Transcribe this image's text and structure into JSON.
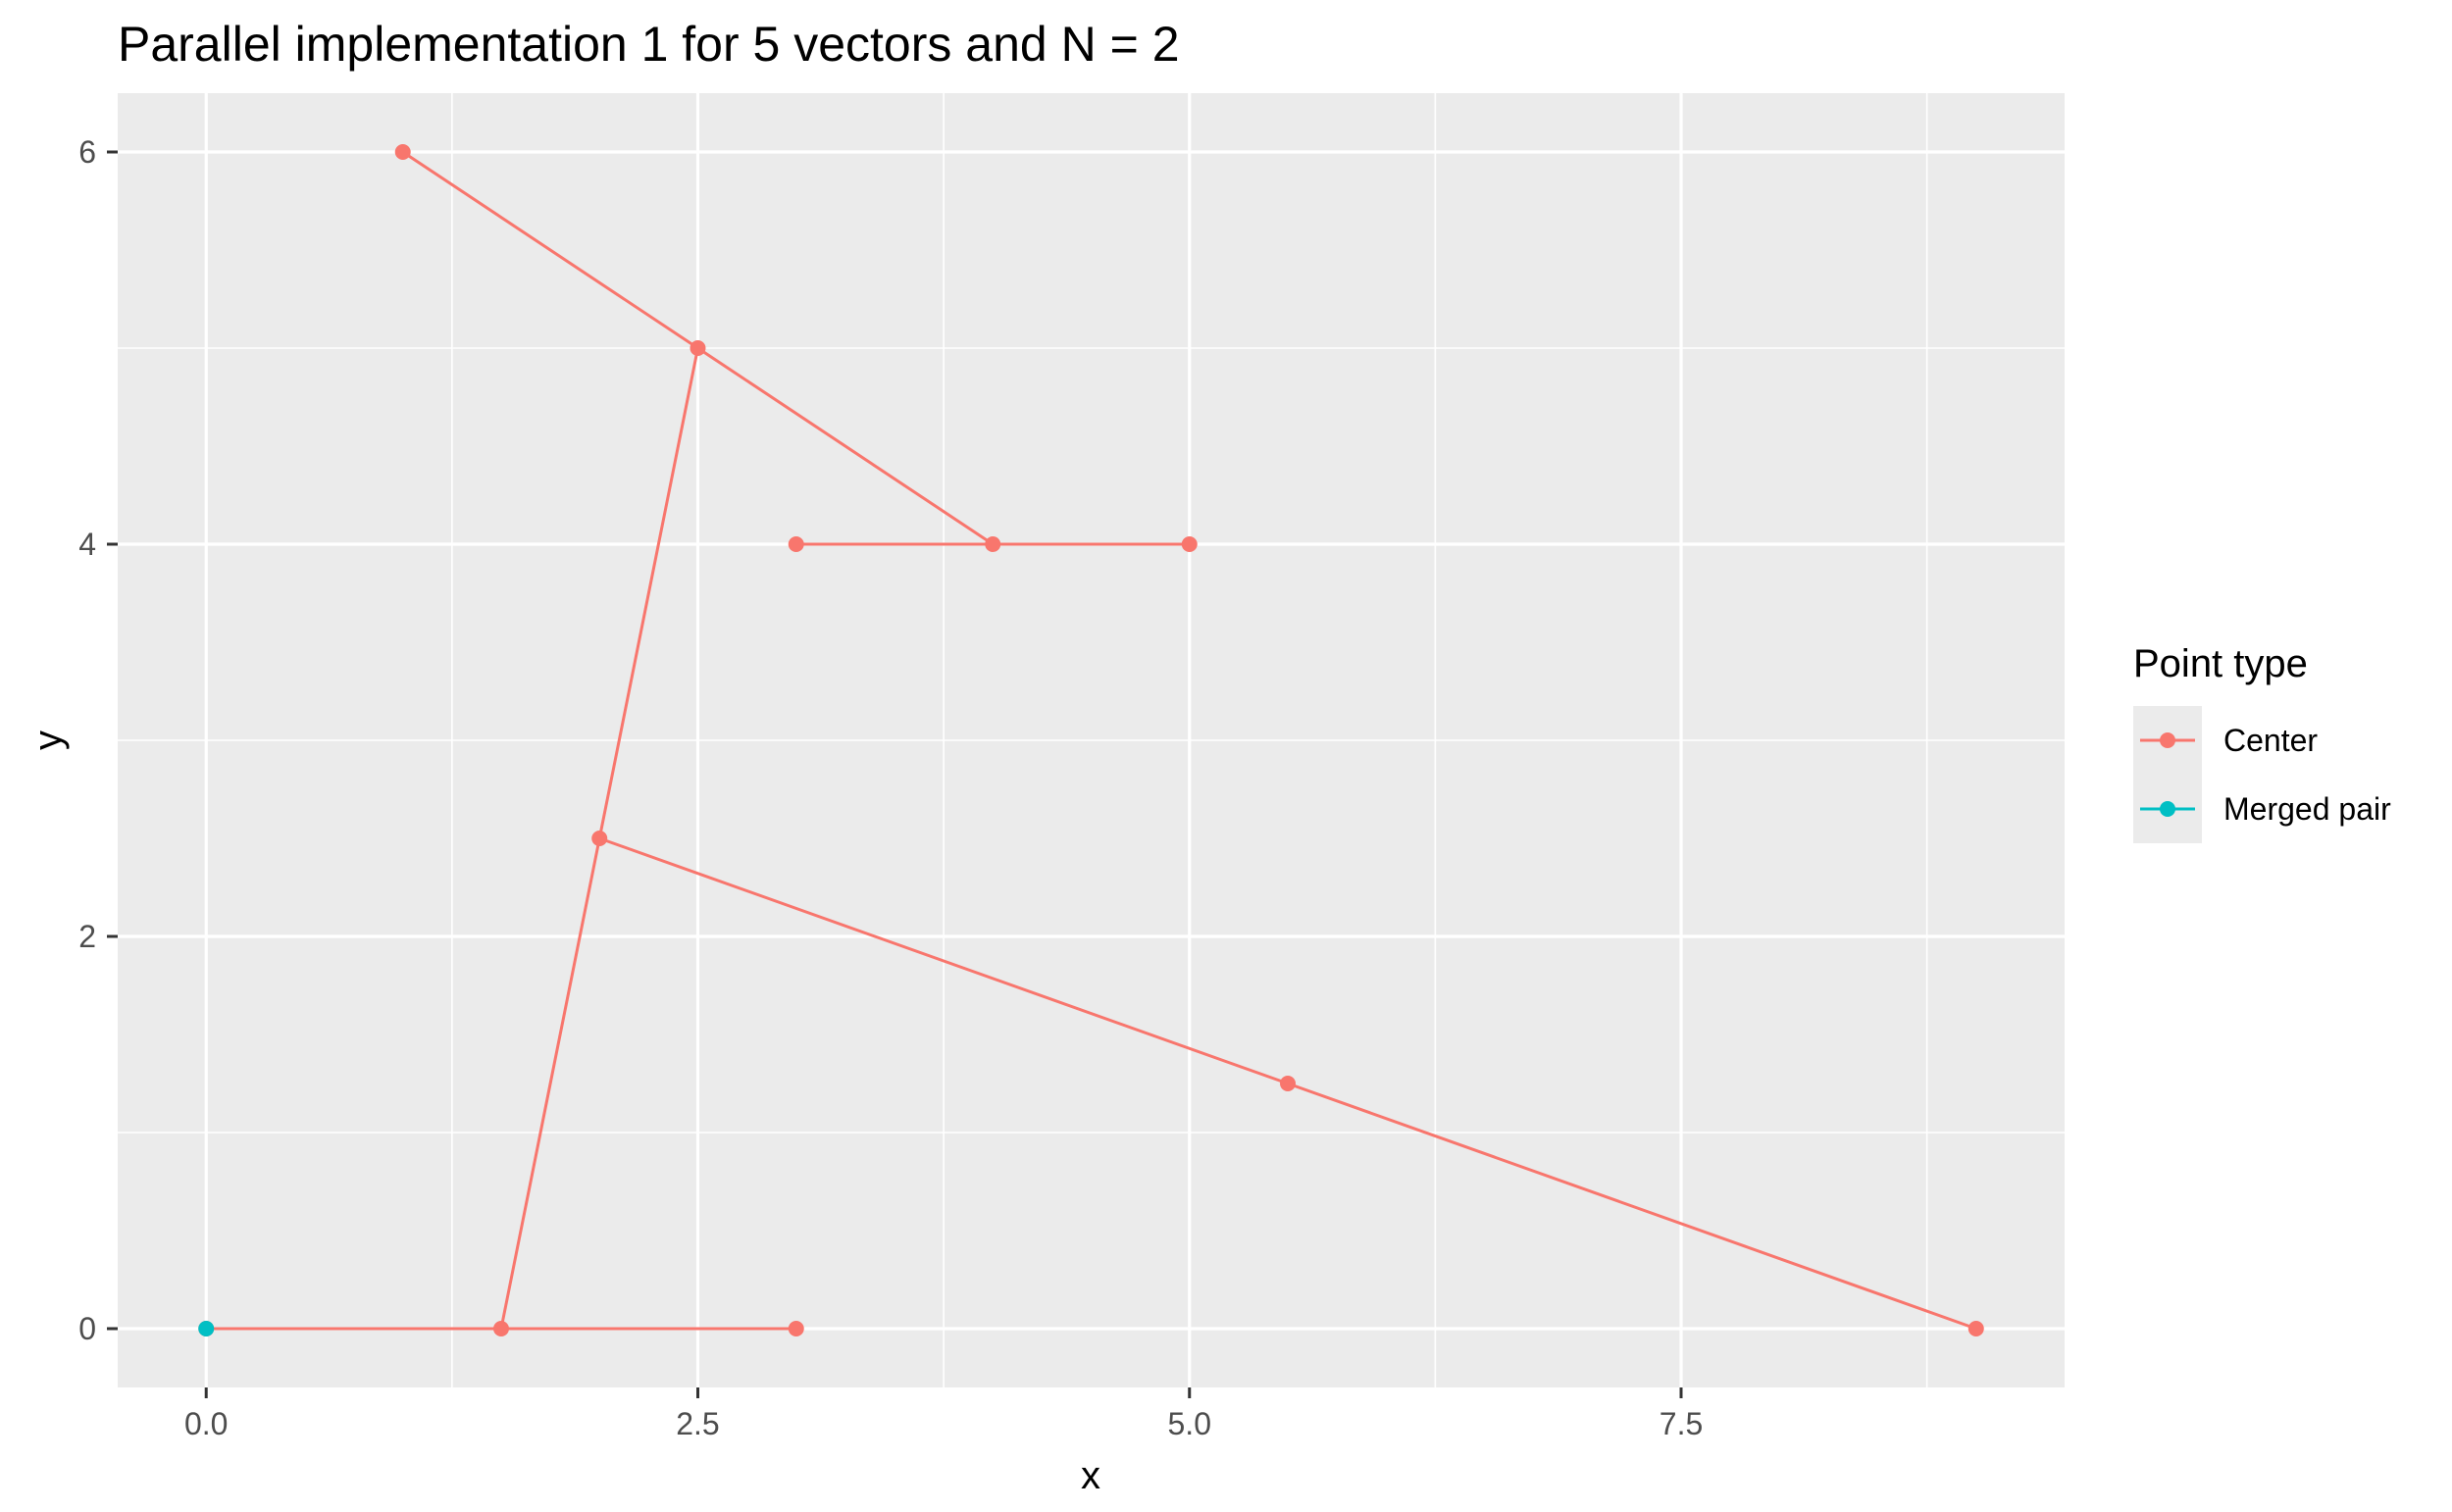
{
  "chart_data": {
    "type": "line",
    "title": "Parallel implementation 1 for 5 vectors and N = 2",
    "xlabel": "x",
    "ylabel": "y",
    "xlim": [
      -0.45,
      9.45
    ],
    "ylim": [
      -0.3,
      6.3
    ],
    "x_ticks": [
      0,
      2.5,
      5,
      7.5
    ],
    "x_tick_labels": [
      "0.0",
      "2.5",
      "5.0",
      "7.5"
    ],
    "x_minor_ticks": [
      1.25,
      3.75,
      6.25,
      8.75
    ],
    "y_ticks": [
      0,
      2,
      4,
      6
    ],
    "y_tick_labels": [
      "0",
      "2",
      "4",
      "6"
    ],
    "y_minor_ticks": [
      1,
      3,
      5
    ],
    "grid": true,
    "legend": {
      "title": "Point type",
      "position": "right",
      "entries": [
        {
          "label": "Center",
          "color": "#f8766d"
        },
        {
          "label": "Merged pair",
          "color": "#00bfc4"
        }
      ]
    },
    "colors": {
      "Center": "#f8766d",
      "Merged pair": "#00bfc4",
      "panel": "#ebebeb",
      "grid": "#ffffff"
    },
    "segments": [
      {
        "series": "Center",
        "points": [
          [
            1,
            6
          ],
          [
            2.5,
            5
          ]
        ]
      },
      {
        "series": "Center",
        "points": [
          [
            2.5,
            5
          ],
          [
            4,
            4
          ]
        ]
      },
      {
        "series": "Center",
        "points": [
          [
            3,
            4
          ],
          [
            4,
            4
          ]
        ]
      },
      {
        "series": "Center",
        "points": [
          [
            4,
            4
          ],
          [
            5,
            4
          ]
        ]
      },
      {
        "series": "Center",
        "points": [
          [
            2,
            2.5
          ],
          [
            2.5,
            5
          ]
        ]
      },
      {
        "series": "Center",
        "points": [
          [
            1.5,
            0
          ],
          [
            2,
            2.5
          ]
        ]
      },
      {
        "series": "Center",
        "points": [
          [
            2,
            2.5
          ],
          [
            5.5,
            1.25
          ]
        ]
      },
      {
        "series": "Center",
        "points": [
          [
            5.5,
            1.25
          ],
          [
            9,
            0
          ]
        ]
      },
      {
        "series": "Center",
        "points": [
          [
            0,
            0
          ],
          [
            1.5,
            0
          ]
        ]
      },
      {
        "series": "Center",
        "points": [
          [
            1.5,
            0
          ],
          [
            3,
            0
          ]
        ]
      }
    ],
    "points": [
      {
        "series": "Center",
        "x": 1,
        "y": 6
      },
      {
        "series": "Center",
        "x": 2.5,
        "y": 5
      },
      {
        "series": "Center",
        "x": 3,
        "y": 4
      },
      {
        "series": "Center",
        "x": 4,
        "y": 4
      },
      {
        "series": "Center",
        "x": 5,
        "y": 4
      },
      {
        "series": "Center",
        "x": 2,
        "y": 2.5
      },
      {
        "series": "Center",
        "x": 5.5,
        "y": 1.25
      },
      {
        "series": "Center",
        "x": 9,
        "y": 0
      },
      {
        "series": "Center",
        "x": 1.5,
        "y": 0
      },
      {
        "series": "Center",
        "x": 3,
        "y": 0
      },
      {
        "series": "Center",
        "x": 0,
        "y": 0
      },
      {
        "series": "Merged pair",
        "x": 0,
        "y": 0
      }
    ]
  }
}
